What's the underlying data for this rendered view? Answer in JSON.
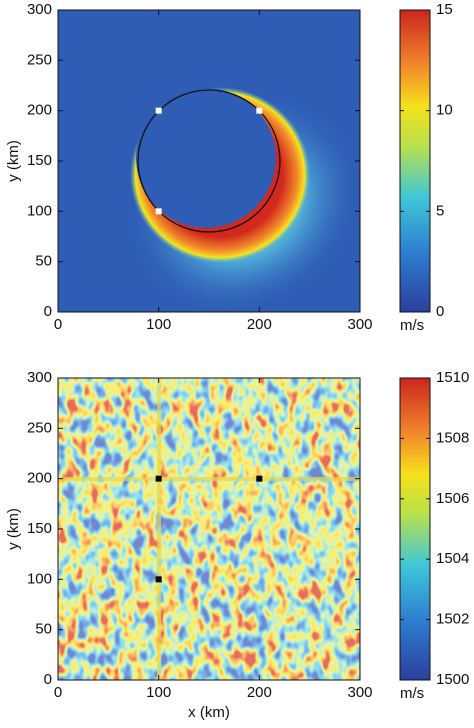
{
  "chart_data": [
    {
      "type": "heatmap",
      "ylabel": "y (km)",
      "xlim": [
        0,
        300
      ],
      "ylim": [
        0,
        300
      ],
      "xticks": [
        0,
        100,
        200,
        300
      ],
      "yticks": [
        0,
        50,
        100,
        150,
        200,
        250,
        300
      ],
      "colorbar": {
        "lim": [
          0,
          15
        ],
        "ticks": [
          0,
          5,
          10,
          15
        ],
        "label": "m/s"
      },
      "markers": {
        "x": [
          100,
          200,
          100
        ],
        "y": [
          200,
          200,
          100
        ],
        "color": "#ffffff"
      }
    },
    {
      "type": "heatmap",
      "ylabel": "y (km)",
      "xlabel": "x (km)",
      "xlim": [
        0,
        300
      ],
      "ylim": [
        0,
        300
      ],
      "xticks": [
        0,
        100,
        200,
        300
      ],
      "yticks": [
        0,
        50,
        100,
        150,
        200,
        250,
        300
      ],
      "colorbar": {
        "lim": [
          1500,
          1510
        ],
        "ticks": [
          1500,
          1502,
          1504,
          1506,
          1508,
          1510
        ],
        "label": "m/s"
      },
      "markers": {
        "x": [
          100,
          200,
          100
        ],
        "y": [
          200,
          200,
          100
        ],
        "color": "#000000"
      }
    }
  ]
}
